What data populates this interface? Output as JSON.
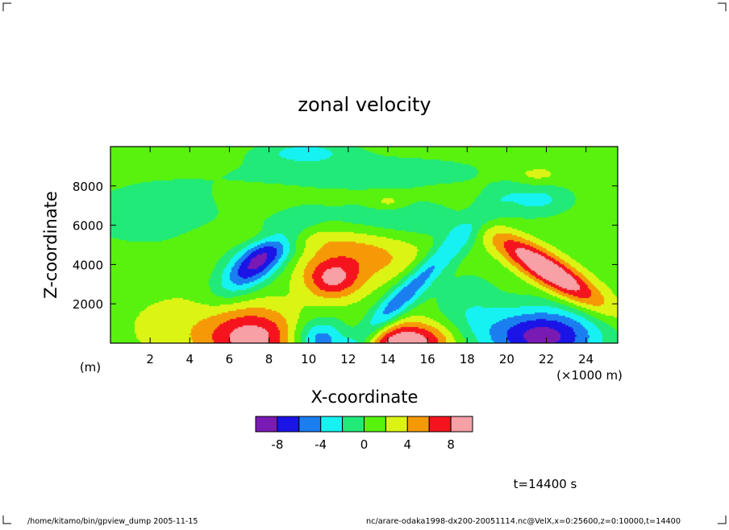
{
  "chart_data": {
    "type": "heatmap",
    "title": "zonal velocity",
    "xlabel": "X-coordinate",
    "ylabel": "Z-coordinate",
    "x_unit_label": "(m)",
    "x_scale_label": "(×1000 m)",
    "xlim": [
      0,
      25.6
    ],
    "ylim": [
      0,
      10000
    ],
    "x_ticks": [
      2,
      4,
      6,
      8,
      10,
      12,
      14,
      16,
      18,
      20,
      22,
      24
    ],
    "y_ticks": [
      2000,
      4000,
      6000,
      8000
    ],
    "colorbar": {
      "tick_labels": [
        "-8",
        "-4",
        "0",
        "4",
        "8"
      ],
      "tick_values": [
        -8,
        -4,
        0,
        4,
        8
      ],
      "levels": [
        -10,
        -8,
        -6,
        -4,
        -2,
        0,
        2,
        4,
        6,
        8,
        10
      ],
      "colors": [
        "#7a1ab4",
        "#1a14e6",
        "#1a7ef0",
        "#16f2f2",
        "#22ea78",
        "#58f20e",
        "#dcf414",
        "#f59a06",
        "#f5141e",
        "#f7a0a6"
      ]
    },
    "field_background": 1.0,
    "features": [
      {
        "x": 3.4,
        "z": 800,
        "sx": 2.0,
        "sz": 1300,
        "amp": 1.8
      },
      {
        "x": 7.2,
        "z": 250,
        "sx": 1.7,
        "sz": 1100,
        "amp": 8.0
      },
      {
        "x": 7.5,
        "z": 4200,
        "sx": 1.3,
        "sz": 800,
        "amp": -10.0,
        "tilt": 600
      },
      {
        "x": 11.2,
        "z": 3200,
        "sx": 1.0,
        "sz": 700,
        "amp": 6.5
      },
      {
        "x": 12.6,
        "z": 4400,
        "sx": 2.2,
        "sz": 900,
        "amp": 4.0
      },
      {
        "x": 10.6,
        "z": 200,
        "sx": 1.0,
        "sz": 700,
        "amp": -7.0
      },
      {
        "x": 14.8,
        "z": 2400,
        "sx": 2.8,
        "sz": 650,
        "amp": -6.5,
        "tilt": 1000
      },
      {
        "x": 15.0,
        "z": 100,
        "sx": 1.7,
        "sz": 700,
        "amp": 9.0
      },
      {
        "x": 18.0,
        "z": 1500,
        "sx": 1.2,
        "sz": 1500,
        "amp": -2.5
      },
      {
        "x": 21.8,
        "z": 350,
        "sx": 2.0,
        "sz": 1000,
        "amp": -10.0
      },
      {
        "x": 22.1,
        "z": 3700,
        "sx": 2.0,
        "sz": 650,
        "amp": 10.0,
        "tilt": -600
      },
      {
        "x": 2.0,
        "z": 6500,
        "sx": 3.0,
        "sz": 1300,
        "amp": -1.8
      },
      {
        "x": 15.0,
        "z": 6200,
        "sx": 3.5,
        "sz": 700,
        "amp": -2.5
      },
      {
        "x": 21.5,
        "z": 7300,
        "sx": 1.2,
        "sz": 500,
        "amp": -3.5
      },
      {
        "x": 13.0,
        "z": 8700,
        "sx": 6.0,
        "sz": 800,
        "amp": -1.6
      },
      {
        "x": 9.8,
        "z": 9700,
        "sx": 1.5,
        "sz": 400,
        "amp": -3.5
      },
      {
        "x": 21.3,
        "z": 8600,
        "sx": 1.0,
        "sz": 350,
        "amp": 2.5
      },
      {
        "x": 14.0,
        "z": 7200,
        "sx": 0.6,
        "sz": 250,
        "amp": 2.5
      },
      {
        "x": 9.0,
        "z": 5400,
        "sx": 2.5,
        "sz": 400,
        "amp": 2.0
      }
    ]
  },
  "annotations": {
    "time": "t=14400 s",
    "footer_left": "/home/kitamo/bin/gpview_dump  2005-11-15",
    "footer_right": "nc/arare-odaka1998-dx200-20051114.nc@VelX,x=0:25600,z=0:10000,t=14400"
  }
}
